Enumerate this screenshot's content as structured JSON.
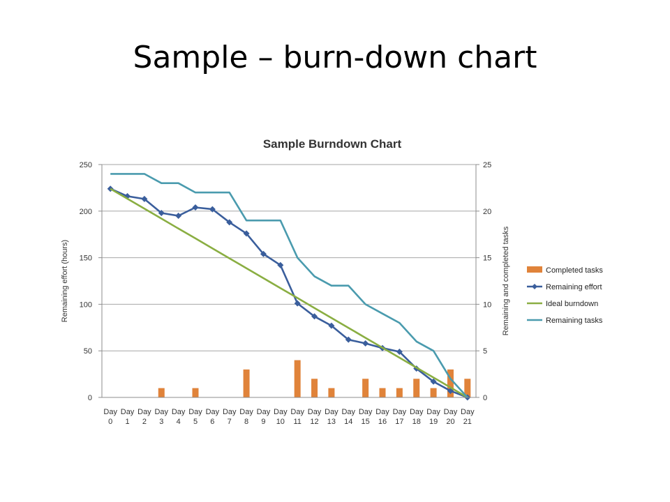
{
  "slide": {
    "title": "Sample – burn-down chart"
  },
  "chart_data": {
    "type": "bar",
    "title": "Sample Burndown Chart",
    "categories": [
      "Day\n0",
      "Day\n1",
      "Day\n2",
      "Day\n3",
      "Day\n4",
      "Day\n5",
      "Day\n6",
      "Day\n7",
      "Day\n8",
      "Day\n9",
      "Day\n10",
      "Day\n11",
      "Day\n12",
      "Day\n13",
      "Day\n14",
      "Day\n15",
      "Day\n16",
      "Day\n17",
      "Day\n18",
      "Day\n19",
      "Day\n20",
      "Day\n21"
    ],
    "ylabel": "Remaining effort (hours)",
    "y2label": "Remaining and completed tasks",
    "ylim": [
      0,
      250
    ],
    "y2lim": [
      0,
      25
    ],
    "yticks": [
      "0",
      "50",
      "100",
      "150",
      "200",
      "250"
    ],
    "y2ticks": [
      "0",
      "5",
      "10",
      "15",
      "20",
      "25"
    ],
    "grid": true,
    "legend_position": "right",
    "series": [
      {
        "name": "Completed tasks",
        "type": "bar",
        "axis": "right",
        "color": "#E0833A",
        "values": [
          0,
          0,
          0,
          1,
          0,
          1,
          0,
          0,
          3,
          0,
          0,
          4,
          2,
          1,
          0,
          2,
          1,
          1,
          2,
          1,
          3,
          2
        ]
      },
      {
        "name": "Remaining effort",
        "type": "line",
        "marker": "diamond",
        "axis": "left",
        "color": "#3A5E9C",
        "values": [
          224,
          216,
          213,
          198,
          195,
          204,
          202,
          188,
          176,
          154,
          142,
          101,
          87,
          77,
          62,
          58,
          53,
          49,
          31,
          17,
          7,
          0
        ]
      },
      {
        "name": "Ideal burndown",
        "type": "line",
        "axis": "left",
        "color": "#8AAE42",
        "values": [
          224,
          213.3,
          202.7,
          192,
          181.3,
          170.7,
          160,
          149.3,
          138.7,
          128,
          117.3,
          106.7,
          96,
          85.3,
          74.7,
          64,
          53.3,
          42.7,
          32,
          21.3,
          10.7,
          0
        ]
      },
      {
        "name": "Remaining tasks",
        "type": "line",
        "axis": "right",
        "color": "#4A9BAE",
        "values": [
          24,
          24,
          24,
          23,
          23,
          22,
          22,
          22,
          19,
          19,
          19,
          15,
          13,
          12,
          12,
          10,
          9,
          8,
          6,
          5,
          2,
          0
        ]
      }
    ]
  }
}
